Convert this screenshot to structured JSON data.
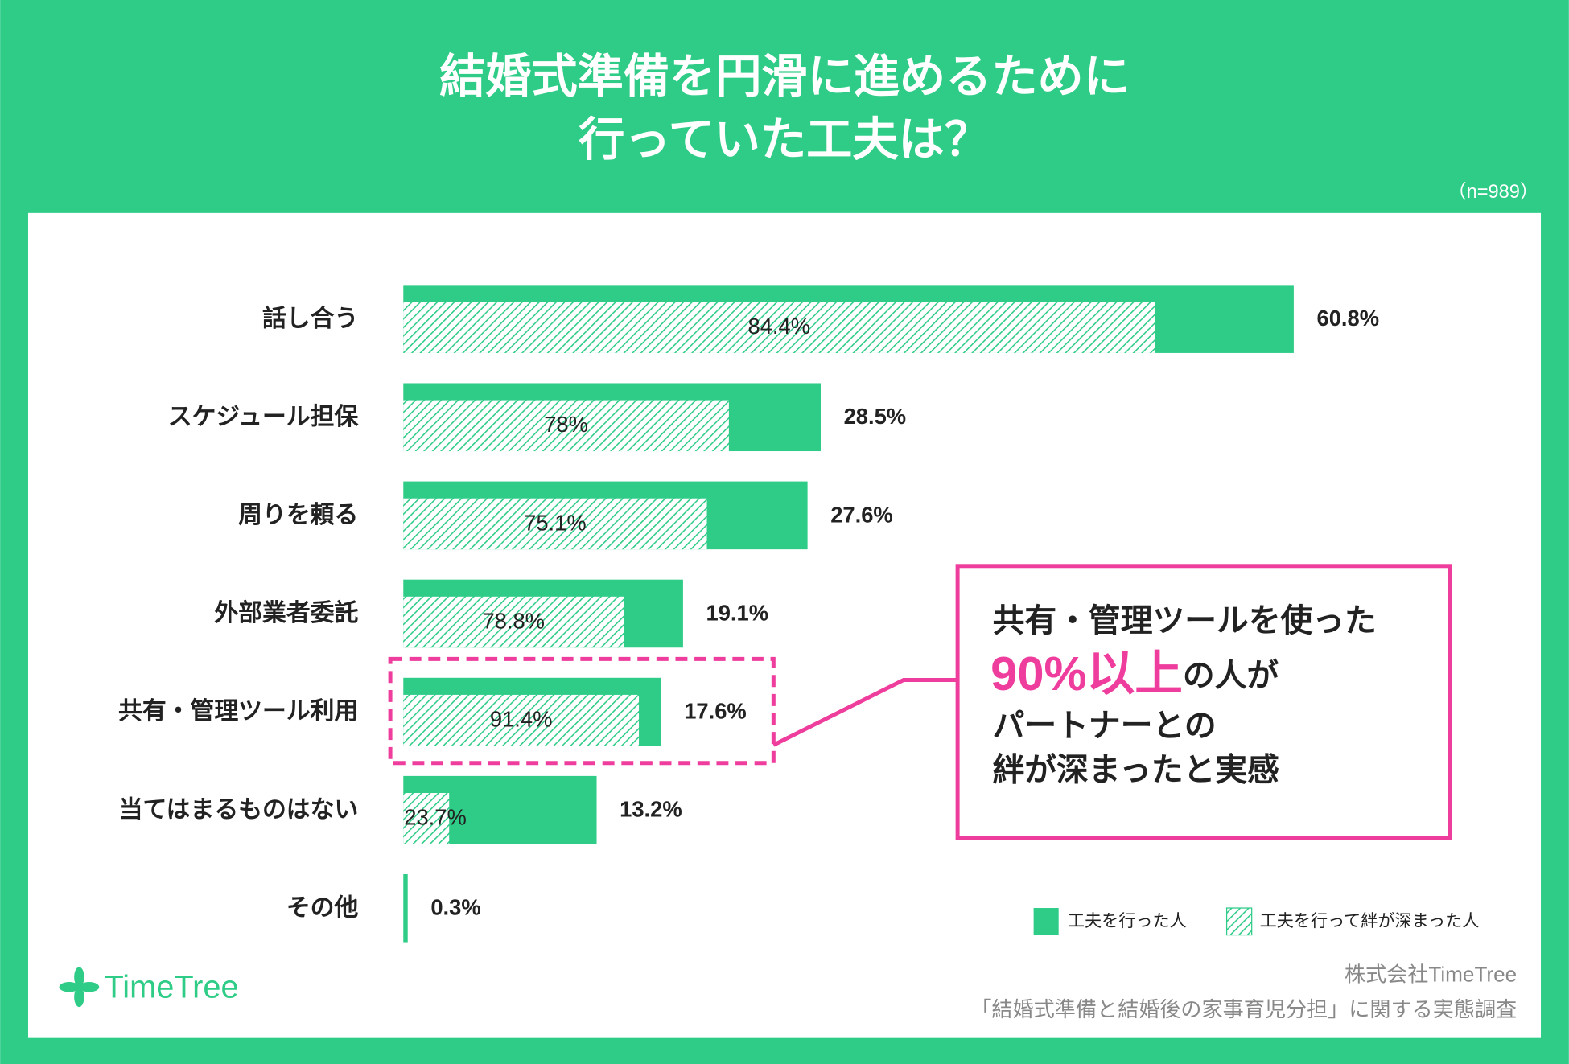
{
  "chart_data": {
    "type": "bar",
    "title": [
      "結婚式準備を円滑に進めるために",
      "行っていた工夫は？"
    ],
    "subtitle": "（n=989）",
    "categories": [
      "話し合う",
      "スケジュール担保",
      "周りを頼る",
      "外部業者委託",
      "共有・管理ツール利用",
      "当てはまるものはない",
      "その他"
    ],
    "series": [
      {
        "name": "工夫を行った人",
        "color": "#2ecc87",
        "values": [
          60.8,
          28.5,
          27.6,
          19.1,
          17.6,
          13.2,
          0.3
        ],
        "value_labels": [
          "60.8%",
          "28.5%",
          "27.6%",
          "19.1%",
          "17.6%",
          "13.2%",
          "0.3%"
        ]
      },
      {
        "name": "工夫を行って絆が深まった人",
        "color": "#2ecc87",
        "values": [
          84.4,
          78,
          75.1,
          78.8,
          91.4,
          23.7,
          null
        ],
        "value_labels": [
          "84.4%",
          "78%",
          "75.1%",
          "78.8%",
          "91.4%",
          "23.7%",
          null
        ]
      }
    ],
    "annotation": {
      "lines": [
        "共有・管理ツールを使った",
        "90%以上",
        "の人が",
        "パートナーとの",
        "絆が深まったと実感"
      ],
      "highlight_color": "#ee3d9c"
    },
    "logo": "TimeTree",
    "source": [
      "株式会社TimeTree",
      "「結婚式準備と結婚後の家事育児分担」に関する実態調査"
    ]
  }
}
